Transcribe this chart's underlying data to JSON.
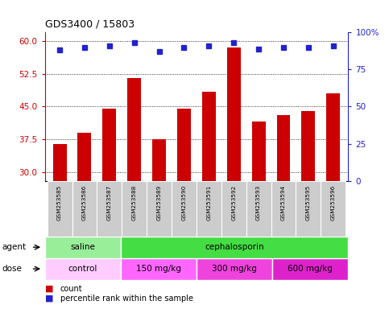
{
  "title": "GDS3400 / 15803",
  "samples": [
    "GSM253585",
    "GSM253586",
    "GSM253587",
    "GSM253588",
    "GSM253589",
    "GSM253590",
    "GSM253591",
    "GSM253592",
    "GSM253593",
    "GSM253594",
    "GSM253595",
    "GSM253596"
  ],
  "counts": [
    36.5,
    39.0,
    44.5,
    51.5,
    37.5,
    44.5,
    48.5,
    58.5,
    41.5,
    43.0,
    44.0,
    48.0
  ],
  "percentiles": [
    88,
    90,
    91,
    93,
    87,
    90,
    91,
    93,
    89,
    90,
    90,
    91
  ],
  "ylim_left": [
    28,
    62
  ],
  "ylim_right": [
    0,
    100
  ],
  "yticks_left": [
    30,
    37.5,
    45,
    52.5,
    60
  ],
  "yticks_right": [
    0,
    25,
    50,
    75,
    100
  ],
  "bar_color": "#cc0000",
  "dot_color": "#2222cc",
  "agent_groups": [
    {
      "label": "saline",
      "start": 0,
      "end": 3,
      "color": "#99ee99"
    },
    {
      "label": "cephalosporin",
      "start": 3,
      "end": 12,
      "color": "#44dd44"
    }
  ],
  "dose_groups": [
    {
      "label": "control",
      "start": 0,
      "end": 3,
      "color": "#ffccff"
    },
    {
      "label": "150 mg/kg",
      "start": 3,
      "end": 6,
      "color": "#ff66ff"
    },
    {
      "label": "300 mg/kg",
      "start": 6,
      "end": 9,
      "color": "#ee44dd"
    },
    {
      "label": "600 mg/kg",
      "start": 9,
      "end": 12,
      "color": "#dd22cc"
    }
  ],
  "legend_count_color": "#cc0000",
  "legend_dot_color": "#2222cc",
  "tick_label_bg": "#cccccc",
  "bar_width": 0.55
}
